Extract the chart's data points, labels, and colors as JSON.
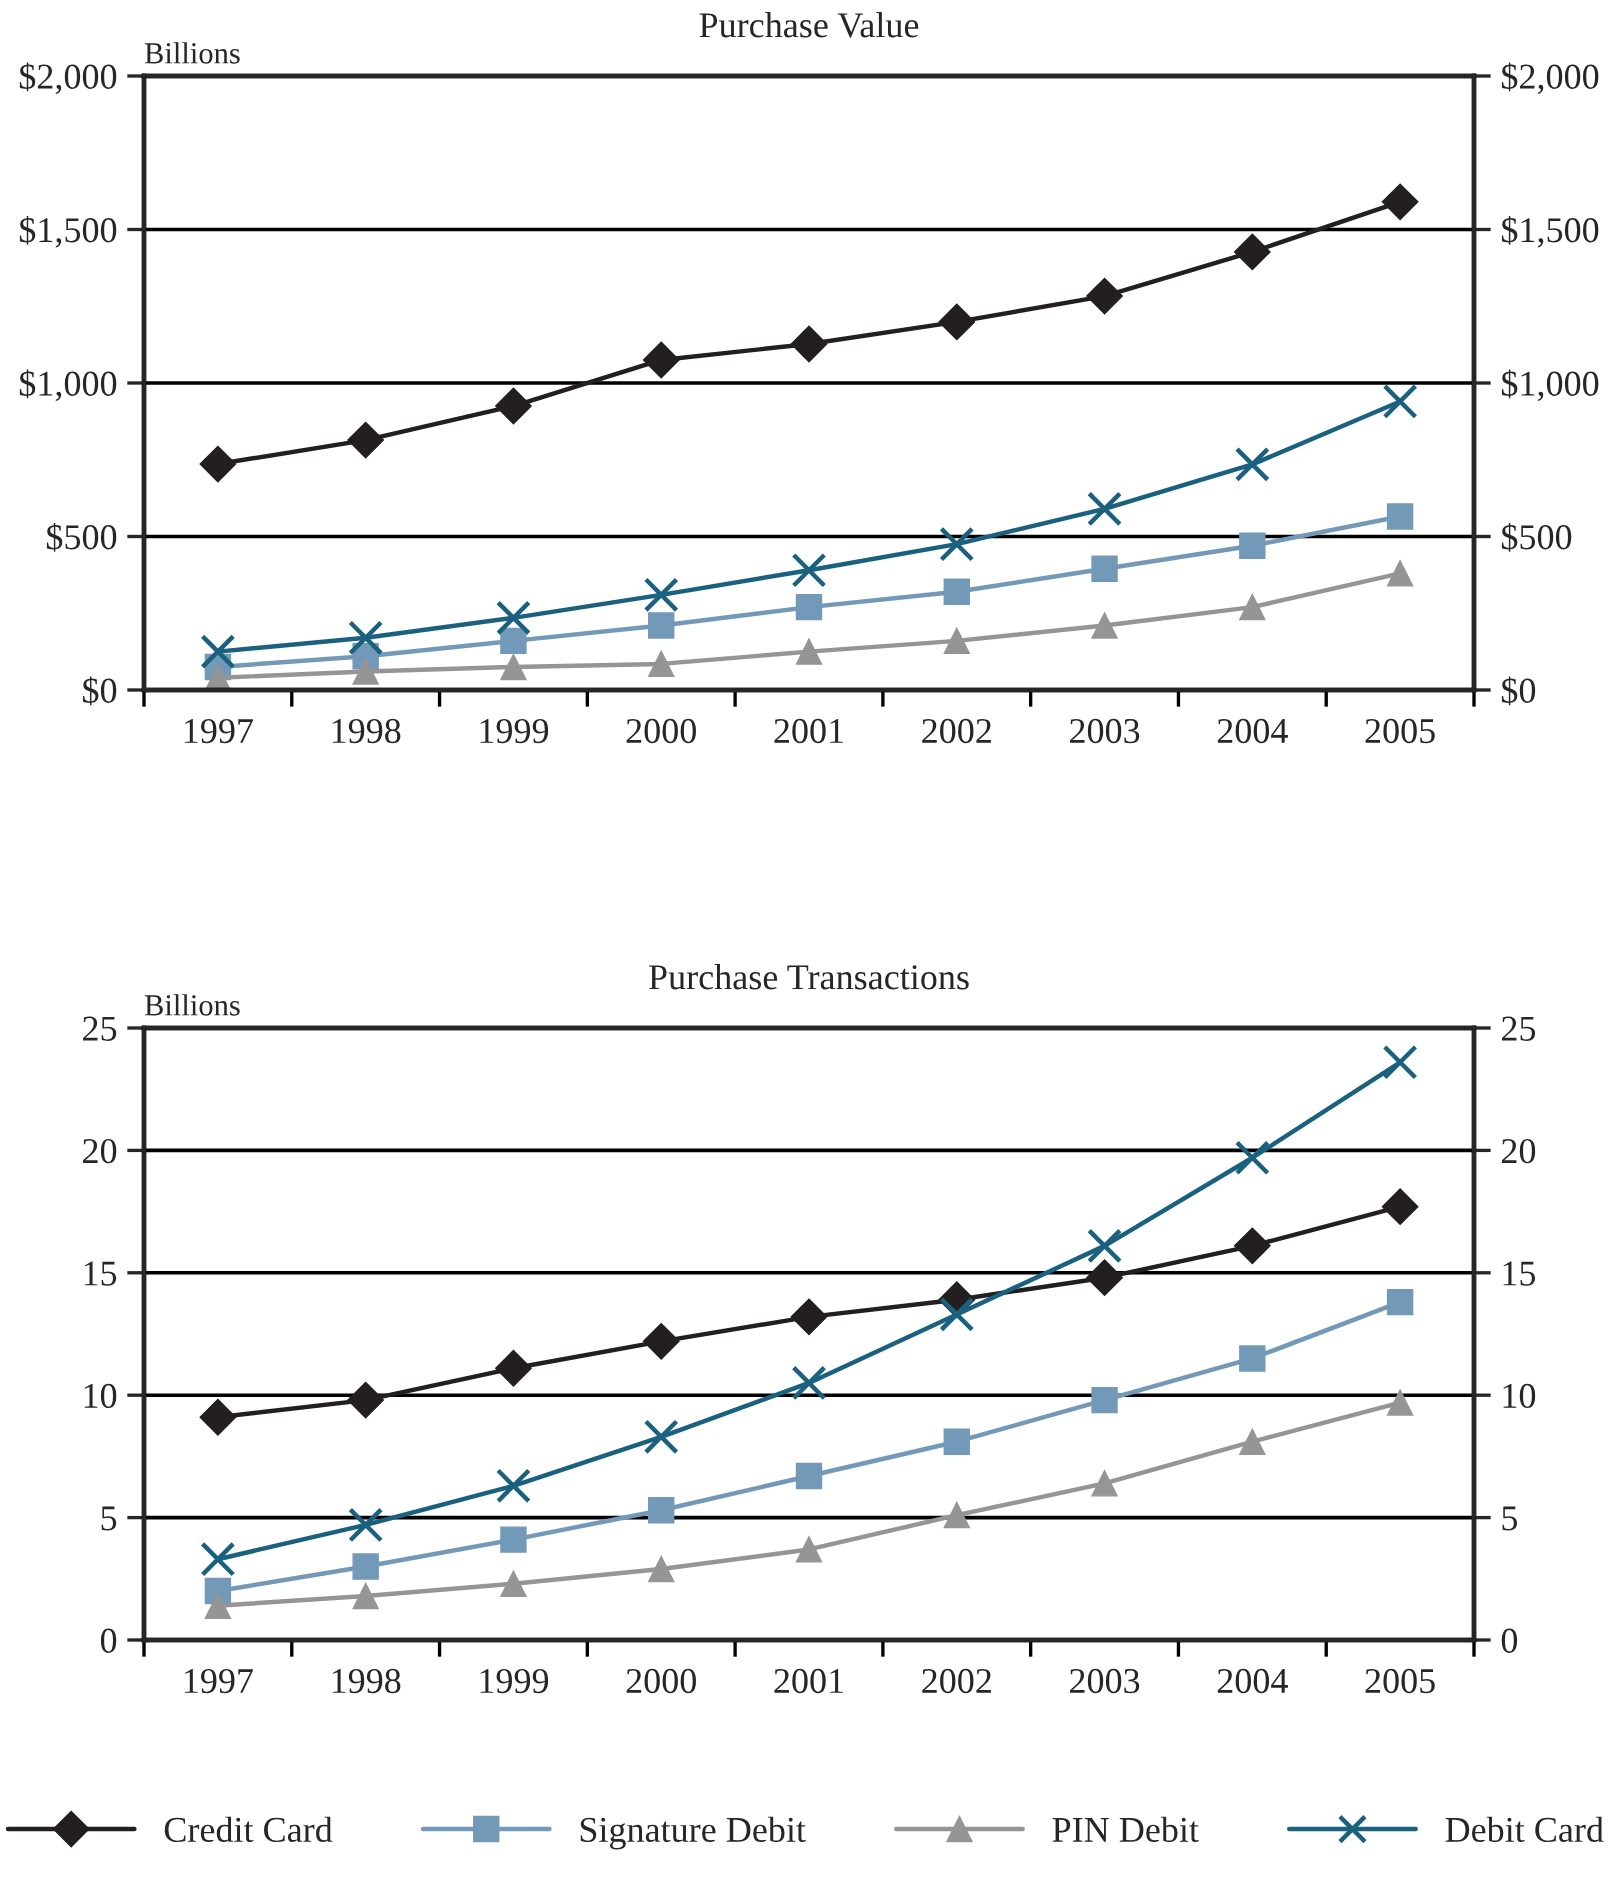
{
  "chart_data": [
    {
      "type": "line",
      "title": "Purchase Value",
      "ylabel": "Billions",
      "categories": [
        "1997",
        "1998",
        "1999",
        "2000",
        "2001",
        "2002",
        "2003",
        "2004",
        "2005"
      ],
      "ylim": [
        0,
        2000
      ],
      "yticks": [
        {
          "value": 0,
          "label": "$0"
        },
        {
          "value": 500,
          "label": "$500"
        },
        {
          "value": 1000,
          "label": "$1,000"
        },
        {
          "value": 1500,
          "label": "$1,500"
        },
        {
          "value": 2000,
          "label": "$2,000"
        }
      ],
      "y2lim": [
        0,
        2000
      ],
      "y2ticks": [
        {
          "value": 0,
          "label": "$0"
        },
        {
          "value": 500,
          "label": "$500"
        },
        {
          "value": 1000,
          "label": "$1,000"
        },
        {
          "value": 1500,
          "label": "$1,500"
        },
        {
          "value": 2000,
          "label": "$2,000"
        }
      ],
      "grid": "y",
      "legend": false,
      "series": [
        {
          "color": "#231f20",
          "marker": "diamond",
          "values": [
            736,
            814,
            925,
            1075,
            1127,
            1199,
            1283,
            1427,
            1590
          ]
        },
        {
          "color": "#7399b8",
          "marker": "square",
          "values": [
            75,
            110,
            160,
            210,
            270,
            320,
            395,
            470,
            565
          ]
        },
        {
          "color": "#959595",
          "marker": "triangle",
          "values": [
            40,
            60,
            75,
            85,
            125,
            160,
            210,
            270,
            380
          ]
        },
        {
          "color": "#1a6180",
          "marker": "cross",
          "values": [
            125,
            170,
            235,
            310,
            390,
            475,
            590,
            735,
            940
          ]
        }
      ]
    },
    {
      "type": "line",
      "title": "Purchase Transactions",
      "ylabel": "Billions",
      "categories": [
        "1997",
        "1998",
        "1999",
        "2000",
        "2001",
        "2002",
        "2003",
        "2004",
        "2005"
      ],
      "ylim": [
        0,
        25
      ],
      "yticks": [
        0,
        5,
        10,
        15,
        20,
        25
      ],
      "y2lim": [
        0,
        25
      ],
      "y2ticks": [
        0,
        5,
        10,
        15,
        20,
        25
      ],
      "grid": "y",
      "legend": "bottom",
      "series": [
        {
          "name": "Credit Card",
          "color": "#231f20",
          "marker": "diamond",
          "values": [
            9.1,
            9.8,
            11.1,
            12.2,
            13.2,
            13.9,
            14.8,
            16.1,
            17.7
          ]
        },
        {
          "name": "Signature Debit",
          "color": "#7399b8",
          "marker": "square",
          "values": [
            2.0,
            3.0,
            4.1,
            5.3,
            6.7,
            8.1,
            9.8,
            11.5,
            13.8
          ]
        },
        {
          "name": "PIN Debit",
          "color": "#959595",
          "marker": "triangle",
          "values": [
            1.4,
            1.8,
            2.3,
            2.9,
            3.7,
            5.1,
            6.4,
            8.1,
            9.7
          ]
        },
        {
          "name": "Debit Card",
          "color": "#1a6180",
          "marker": "cross",
          "values": [
            3.3,
            4.7,
            6.3,
            8.3,
            10.5,
            13.3,
            16.1,
            19.7,
            23.6
          ]
        }
      ]
    }
  ]
}
